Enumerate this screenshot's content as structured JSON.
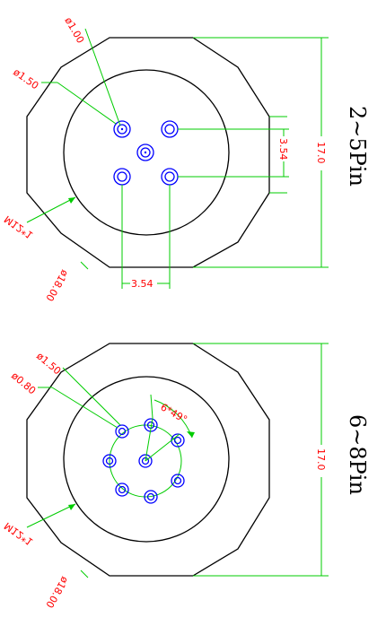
{
  "colors": {
    "outline": "#000000",
    "dimension_line": "#00cc00",
    "dimension_text": "#ff0000",
    "pin": "#0000ff"
  },
  "top": {
    "title": "2~5Pin",
    "labels": {
      "pin_hole": "ø1.00",
      "pin_body": "ø1.50",
      "thread": "M12*1",
      "outer_diameter": "ø18.00",
      "spacing_vertical": "3.54",
      "spacing_horizontal": "3.54",
      "height": "17.0"
    }
  },
  "bottom": {
    "title": "6~8Pin",
    "labels": {
      "pin_body": "ø1.50",
      "pin_hole": "ø0.80",
      "angle": "6*49°",
      "thread": "M12*1",
      "outer_diameter": "ø18.00",
      "height": "17.0"
    }
  }
}
